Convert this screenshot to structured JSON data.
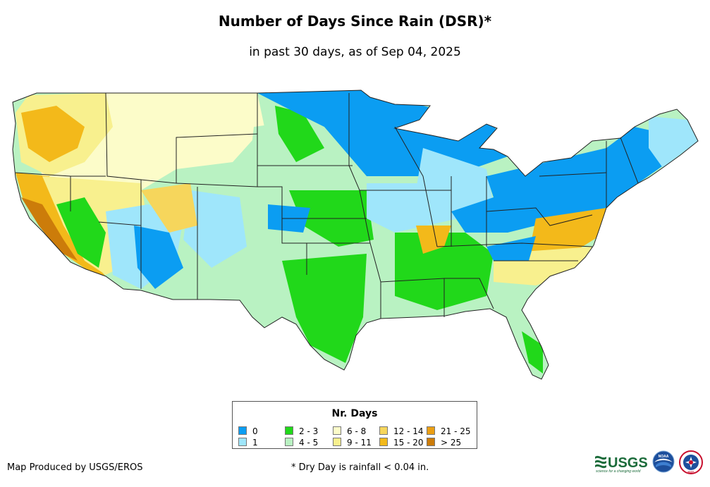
{
  "header": {
    "title": "Number of Days Since Rain (DSR)*",
    "subtitle": "in past 30 days, as of Sep 04, 2025"
  },
  "legend": {
    "title": "Nr. Days",
    "items": [
      {
        "label": "0",
        "color": "#0b9df2"
      },
      {
        "label": "1",
        "color": "#9fe6fb"
      },
      {
        "label": "2 - 3",
        "color": "#21d81a"
      },
      {
        "label": "4 - 5",
        "color": "#b9f2c2"
      },
      {
        "label": "6 - 8",
        "color": "#fcfcc9"
      },
      {
        "label": "9 - 11",
        "color": "#f8f08e"
      },
      {
        "label": "12 - 14",
        "color": "#f6d65c"
      },
      {
        "label": "15 - 20",
        "color": "#f3b91a"
      },
      {
        "label": "21 - 25",
        "color": "#eb9f14"
      },
      {
        "label": "> 25",
        "color": "#cc7c0a"
      }
    ]
  },
  "footer": {
    "credit": "Map Produced by USGS/EROS",
    "note": "* Dry Day is rainfall < 0.04 in."
  },
  "logos": {
    "usgs_text": "USGS",
    "usgs_tagline": "science for a changing world",
    "noaa_text": "NOAA",
    "nws_text": "NWS"
  }
}
